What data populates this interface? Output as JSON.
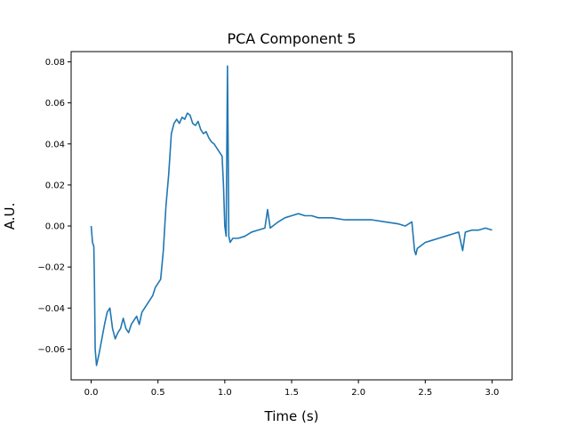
{
  "chart_data": {
    "type": "line",
    "title": "PCA Component 5",
    "xlabel": "Time (s)",
    "ylabel": "A.U.",
    "xlim": [
      -0.15,
      3.15
    ],
    "ylim": [
      -0.075,
      0.085
    ],
    "xticks": [
      0.0,
      0.5,
      1.0,
      1.5,
      2.0,
      2.5,
      3.0
    ],
    "xtick_labels": [
      "0.0",
      "0.5",
      "1.0",
      "1.5",
      "2.0",
      "2.5",
      "3.0"
    ],
    "yticks": [
      -0.06,
      -0.04,
      -0.02,
      0.0,
      0.02,
      0.04,
      0.06,
      0.08
    ],
    "ytick_labels": [
      "−0.06",
      "−0.04",
      "−0.02",
      "0.00",
      "0.02",
      "0.04",
      "0.06",
      "0.08"
    ],
    "grid": false,
    "color": "#1f77b4",
    "series": [
      {
        "x": [
          0.0,
          0.01,
          0.02,
          0.025,
          0.03,
          0.04,
          0.06,
          0.08,
          0.1,
          0.12,
          0.14,
          0.16,
          0.18,
          0.2,
          0.22,
          0.24,
          0.26,
          0.28,
          0.3,
          0.32,
          0.34,
          0.36,
          0.38,
          0.4,
          0.42,
          0.44,
          0.46,
          0.48,
          0.5,
          0.52,
          0.54,
          0.56,
          0.58,
          0.6,
          0.62,
          0.64,
          0.66,
          0.68,
          0.7,
          0.72,
          0.74,
          0.76,
          0.78,
          0.8,
          0.82,
          0.84,
          0.86,
          0.88,
          0.9,
          0.92,
          0.94,
          0.96,
          0.98,
          0.99,
          1.0,
          1.01,
          1.02,
          1.025,
          1.03,
          1.04,
          1.05,
          1.06,
          1.08,
          1.1,
          1.15,
          1.2,
          1.25,
          1.3,
          1.32,
          1.34,
          1.36,
          1.4,
          1.45,
          1.5,
          1.55,
          1.6,
          1.65,
          1.7,
          1.8,
          1.9,
          2.0,
          2.1,
          2.2,
          2.3,
          2.35,
          2.4,
          2.41,
          2.42,
          2.43,
          2.44,
          2.46,
          2.5,
          2.55,
          2.6,
          2.65,
          2.7,
          2.75,
          2.78,
          2.8,
          2.85,
          2.9,
          2.95,
          3.0
        ],
        "y": [
          0.0,
          -0.008,
          -0.01,
          -0.03,
          -0.06,
          -0.068,
          -0.062,
          -0.055,
          -0.048,
          -0.042,
          -0.04,
          -0.05,
          -0.055,
          -0.052,
          -0.05,
          -0.045,
          -0.05,
          -0.052,
          -0.048,
          -0.046,
          -0.044,
          -0.048,
          -0.042,
          -0.04,
          -0.038,
          -0.036,
          -0.034,
          -0.03,
          -0.028,
          -0.026,
          -0.012,
          0.01,
          0.025,
          0.045,
          0.05,
          0.052,
          0.05,
          0.053,
          0.052,
          0.055,
          0.054,
          0.05,
          0.049,
          0.051,
          0.047,
          0.045,
          0.046,
          0.043,
          0.041,
          0.04,
          0.038,
          0.036,
          0.034,
          0.02,
          0.0,
          -0.005,
          0.078,
          0.04,
          -0.005,
          -0.008,
          -0.007,
          -0.006,
          -0.006,
          -0.006,
          -0.005,
          -0.003,
          -0.002,
          -0.001,
          0.008,
          -0.001,
          0.0,
          0.002,
          0.004,
          0.005,
          0.006,
          0.005,
          0.005,
          0.004,
          0.004,
          0.003,
          0.003,
          0.003,
          0.002,
          0.001,
          0.0,
          0.002,
          -0.005,
          -0.012,
          -0.014,
          -0.011,
          -0.01,
          -0.008,
          -0.007,
          -0.006,
          -0.005,
          -0.004,
          -0.003,
          -0.012,
          -0.003,
          -0.002,
          -0.002,
          -0.001,
          -0.002
        ]
      }
    ]
  }
}
